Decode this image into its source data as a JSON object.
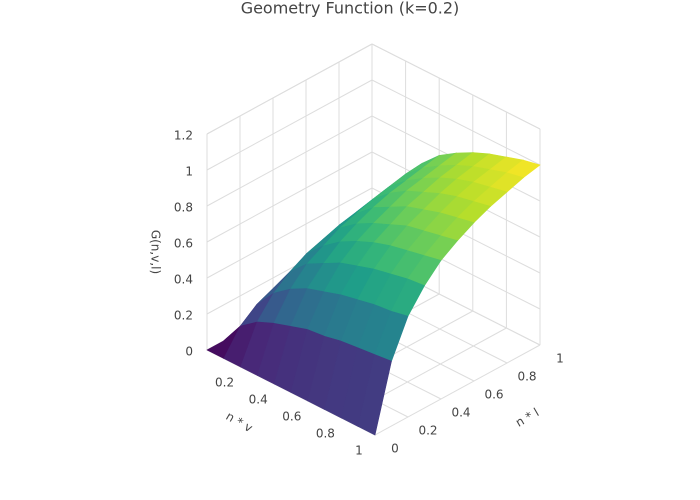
{
  "chart_data": {
    "type": "surface",
    "title": "Geometry Function (k=0.2)",
    "x_label": "n * v",
    "y_label": "n * l",
    "z_label": "G(n,v,l)",
    "x": [
      0,
      0.1,
      0.2,
      0.3,
      0.4,
      0.5,
      0.6,
      0.7,
      0.8,
      0.9,
      1
    ],
    "y": [
      0,
      0.1,
      0.2,
      0.3,
      0.4,
      0.5,
      0.6,
      0.7,
      0.8,
      0.9,
      1
    ],
    "z": [
      [
        0,
        0,
        0,
        0,
        0,
        0,
        0,
        0,
        0,
        0,
        0
      ],
      [
        0,
        0.13,
        0.2,
        0.24,
        0.27,
        0.3,
        0.31,
        0.33,
        0.34,
        0.35,
        0.36
      ],
      [
        0,
        0.2,
        0.31,
        0.38,
        0.43,
        0.46,
        0.49,
        0.51,
        0.53,
        0.54,
        0.56
      ],
      [
        0,
        0.24,
        0.38,
        0.47,
        0.52,
        0.57,
        0.6,
        0.63,
        0.65,
        0.67,
        0.68
      ],
      [
        0,
        0.27,
        0.43,
        0.52,
        0.59,
        0.64,
        0.68,
        0.71,
        0.73,
        0.75,
        0.77
      ],
      [
        0,
        0.3,
        0.46,
        0.57,
        0.64,
        0.69,
        0.73,
        0.77,
        0.79,
        0.81,
        0.83
      ],
      [
        0,
        0.31,
        0.49,
        0.6,
        0.68,
        0.73,
        0.78,
        0.81,
        0.84,
        0.86,
        0.88
      ],
      [
        0,
        0.33,
        0.51,
        0.63,
        0.71,
        0.77,
        0.81,
        0.85,
        0.88,
        0.9,
        0.92
      ],
      [
        0,
        0.34,
        0.53,
        0.65,
        0.73,
        0.79,
        0.84,
        0.88,
        0.91,
        0.93,
        0.95
      ],
      [
        0,
        0.35,
        0.54,
        0.67,
        0.75,
        0.81,
        0.86,
        0.9,
        0.93,
        0.96,
        0.98
      ],
      [
        0,
        0.36,
        0.56,
        0.68,
        0.77,
        0.83,
        0.88,
        0.92,
        0.95,
        0.98,
        1
      ]
    ],
    "colorscale": "Viridis",
    "xlim": [
      0,
      1
    ],
    "ylim": [
      0,
      1
    ],
    "zlim": [
      0,
      1.2
    ],
    "xticks": [
      0.2,
      0.4,
      0.6,
      0.8,
      1
    ],
    "yticks": [
      0,
      0.2,
      0.4,
      0.6,
      0.8,
      1
    ],
    "zticks": [
      0,
      0.2,
      0.4,
      0.6,
      0.8,
      1,
      1.2
    ],
    "grid": true
  }
}
